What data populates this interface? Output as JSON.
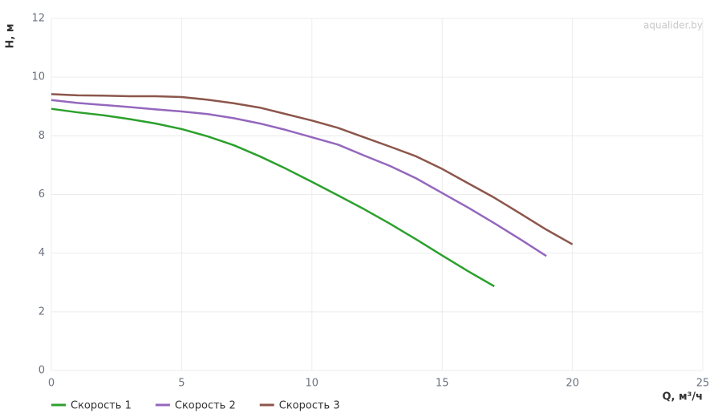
{
  "chart_data": {
    "type": "line",
    "watermark": "aqualider.by",
    "x_label": "Q, м³/ч",
    "y_label": "H, м",
    "xlim": [
      0,
      25
    ],
    "xticks": [
      0,
      5,
      10,
      15,
      20,
      25
    ],
    "ylim": [
      0,
      12
    ],
    "yticks": [
      0,
      2,
      4,
      6,
      8,
      10,
      12
    ],
    "grid": true,
    "legend": "bottom-left",
    "series": [
      {
        "name": "Скорость 1",
        "color": "#2ca02c",
        "x": [
          0,
          1,
          2,
          3,
          4,
          5,
          6,
          7,
          8,
          9,
          10,
          11,
          12,
          13,
          14,
          15,
          16,
          17
        ],
        "values": [
          8.92,
          8.8,
          8.7,
          8.57,
          8.42,
          8.23,
          7.98,
          7.68,
          7.3,
          6.88,
          6.43,
          5.97,
          5.5,
          5.0,
          4.47,
          3.92,
          3.38,
          2.87
        ]
      },
      {
        "name": "Скорость 2",
        "color": "#9467bd",
        "x": [
          0,
          1,
          2,
          3,
          4,
          5,
          6,
          7,
          8,
          9,
          10,
          11,
          12,
          13,
          14,
          15,
          16,
          17,
          18,
          19
        ],
        "values": [
          9.22,
          9.12,
          9.05,
          8.98,
          8.9,
          8.83,
          8.74,
          8.6,
          8.42,
          8.2,
          7.95,
          7.7,
          7.33,
          6.97,
          6.55,
          6.05,
          5.55,
          5.02,
          4.47,
          3.9
        ]
      },
      {
        "name": "Скорость 3",
        "color": "#8c564b",
        "x": [
          0,
          1,
          2,
          3,
          4,
          5,
          6,
          7,
          8,
          9,
          10,
          11,
          12,
          13,
          14,
          15,
          16,
          17,
          18,
          19,
          20
        ],
        "values": [
          9.42,
          9.38,
          9.37,
          9.35,
          9.35,
          9.32,
          9.23,
          9.11,
          8.96,
          8.74,
          8.52,
          8.27,
          7.95,
          7.63,
          7.3,
          6.87,
          6.38,
          5.89,
          5.35,
          4.8,
          4.3
        ]
      }
    ]
  }
}
